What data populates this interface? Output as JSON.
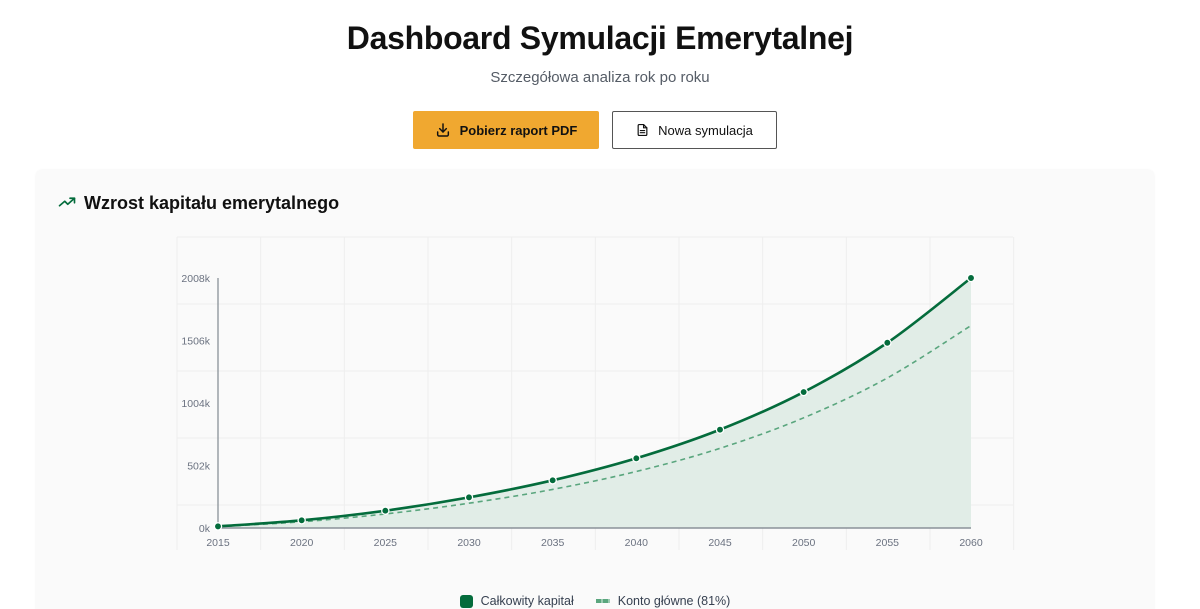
{
  "header": {
    "title": "Dashboard Symulacji Emerytalnej",
    "subtitle": "Szczegółowa analiza rok po roku"
  },
  "actions": {
    "download_pdf": {
      "label": "Pobierz raport PDF",
      "icon": "download-icon"
    },
    "new_simulation": {
      "label": "Nowa symulacja",
      "icon": "document-icon"
    }
  },
  "card": {
    "title": "Wzrost kapitału emerytalnego",
    "icon": "trending-up-icon"
  },
  "colors": {
    "accent": "#f0a830",
    "primary_green": "#046c3c",
    "secondary_green": "#5aa67e",
    "area_fill": "#dfece6"
  },
  "chart_data": {
    "type": "area",
    "title": "Wzrost kapitału emerytalnego",
    "xlabel": "",
    "ylabel": "",
    "x": [
      2015,
      2020,
      2025,
      2030,
      2035,
      2040,
      2045,
      2050,
      2055,
      2060
    ],
    "y_ticks": [
      "0k",
      "502k",
      "1004k",
      "1506k",
      "2008k"
    ],
    "x_ticks": [
      "2015",
      "2020",
      "2025",
      "2030",
      "2035",
      "2040",
      "2045",
      "2050",
      "2055",
      "2060"
    ],
    "ylim": [
      0,
      2008
    ],
    "unit": "k",
    "grid": true,
    "legend_position": "bottom",
    "series": [
      {
        "name": "Całkowity kapitał",
        "style": "solid-with-markers-area",
        "values": [
          13,
          62,
          139,
          246,
          383,
          560,
          790,
          1092,
          1488,
          2008
        ]
      },
      {
        "name": "Konto główne (81%)",
        "style": "dashed",
        "values": [
          11,
          50,
          113,
          199,
          310,
          454,
          640,
          885,
          1205,
          1626
        ]
      }
    ]
  },
  "legend": {
    "items": [
      {
        "label": "Całkowity kapitał"
      },
      {
        "label": "Konto główne (81%)"
      }
    ]
  }
}
